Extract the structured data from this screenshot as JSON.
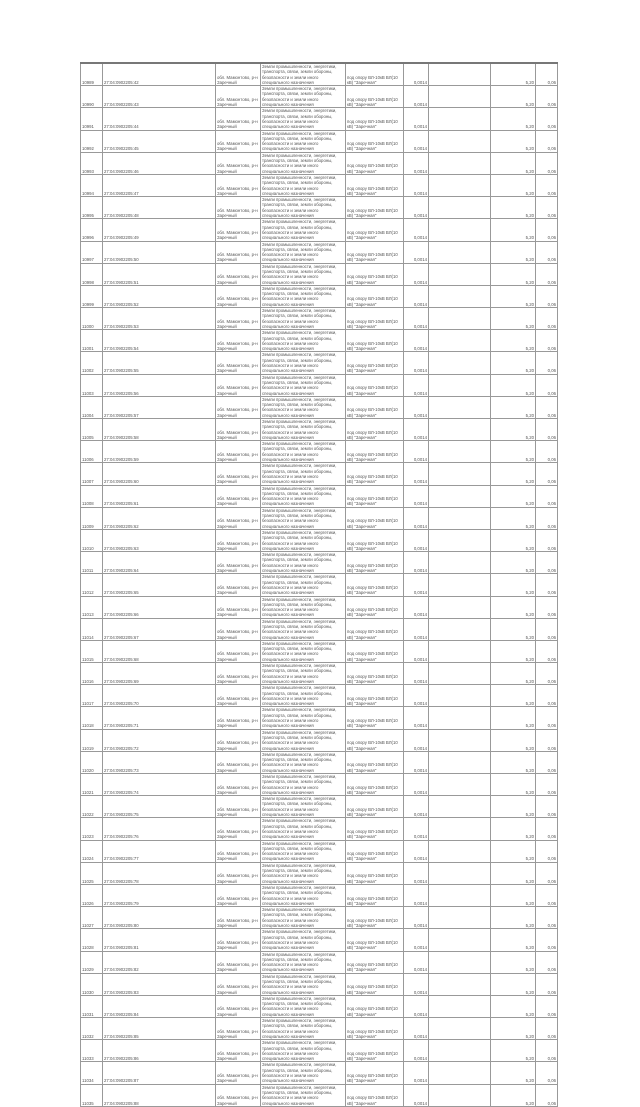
{
  "shared": {
    "address": "обл. Мамонтово, р-н Заречный",
    "category": "Земли промышленности, энергетики, транспорта, связи, земли обороны, безопасности и земли иного специального назначения",
    "purpose": "под опору ВЛ-10кВ ВЛ(10 кВ) \"Заречная\"",
    "area": "0,0014",
    "extra": ""
  },
  "rows": [
    {
      "id": "10989",
      "cad": "27:04:0902205:42",
      "price": "5,20",
      "total": "0,06"
    },
    {
      "id": "10990",
      "cad": "27:04:0902205:43",
      "price": "5,20",
      "total": "0,06"
    },
    {
      "id": "10991",
      "cad": "27:04:0902205:44",
      "price": "5,20",
      "total": "0,06"
    },
    {
      "id": "10992",
      "cad": "27:04:0902205:45",
      "price": "5,20",
      "total": "0,06"
    },
    {
      "id": "10993",
      "cad": "27:04:0902205:46",
      "price": "5,20",
      "total": "0,06"
    },
    {
      "id": "10994",
      "cad": "27:04:0902205:47",
      "price": "5,20",
      "total": "0,06"
    },
    {
      "id": "10995",
      "cad": "27:04:0902205:48",
      "price": "5,20",
      "total": "0,06"
    },
    {
      "id": "10996",
      "cad": "27:04:0902205:49",
      "price": "5,20",
      "total": "0,06"
    },
    {
      "id": "10997",
      "cad": "27:04:0902205:50",
      "price": "5,20",
      "total": "0,06"
    },
    {
      "id": "10998",
      "cad": "27:04:0902205:51",
      "price": "5,20",
      "total": "0,06"
    },
    {
      "id": "10999",
      "cad": "27:04:0902205:52",
      "price": "5,20",
      "total": "0,06"
    },
    {
      "id": "11000",
      "cad": "27:04:0902205:53",
      "price": "5,20",
      "total": "0,06"
    },
    {
      "id": "11001",
      "cad": "27:04:0902205:54",
      "price": "5,20",
      "total": "0,06"
    },
    {
      "id": "11002",
      "cad": "27:04:0902205:55",
      "price": "5,20",
      "total": "0,06"
    },
    {
      "id": "11003",
      "cad": "27:04:0902205:56",
      "price": "5,20",
      "total": "0,06"
    },
    {
      "id": "11004",
      "cad": "27:04:0902205:57",
      "price": "5,20",
      "total": "0,06"
    },
    {
      "id": "11005",
      "cad": "27:04:0902205:58",
      "price": "5,20",
      "total": "0,06"
    },
    {
      "id": "11006",
      "cad": "27:04:0902205:59",
      "price": "5,20",
      "total": "0,06"
    },
    {
      "id": "11007",
      "cad": "27:04:0902205:60",
      "price": "5,20",
      "total": "0,06"
    },
    {
      "id": "11008",
      "cad": "27:04:0902205:61",
      "price": "5,20",
      "total": "0,06"
    },
    {
      "id": "11009",
      "cad": "27:04:0902205:62",
      "price": "5,20",
      "total": "0,06"
    },
    {
      "id": "11010",
      "cad": "27:04:0902205:63",
      "price": "5,20",
      "total": "0,06"
    },
    {
      "id": "11011",
      "cad": "27:04:0902205:64",
      "price": "5,20",
      "total": "0,06"
    },
    {
      "id": "11012",
      "cad": "27:04:0902205:65",
      "price": "5,20",
      "total": "0,06"
    },
    {
      "id": "11013",
      "cad": "27:04:0902205:66",
      "price": "5,20",
      "total": "0,06"
    },
    {
      "id": "11014",
      "cad": "27:04:0902205:67",
      "price": "5,20",
      "total": "0,06"
    },
    {
      "id": "11015",
      "cad": "27:04:0902205:68",
      "price": "5,20",
      "total": "0,06"
    },
    {
      "id": "11016",
      "cad": "27:04:0902205:69",
      "price": "5,20",
      "total": "0,06"
    },
    {
      "id": "11017",
      "cad": "27:04:0902205:70",
      "price": "5,20",
      "total": "0,06"
    },
    {
      "id": "11018",
      "cad": "27:04:0902205:71",
      "price": "5,20",
      "total": "0,06"
    },
    {
      "id": "11019",
      "cad": "27:04:0902205:72",
      "price": "5,20",
      "total": "0,06"
    },
    {
      "id": "11020",
      "cad": "27:04:0902205:73",
      "price": "5,20",
      "total": "0,06"
    },
    {
      "id": "11021",
      "cad": "27:04:0902205:74",
      "price": "5,20",
      "total": "0,06"
    },
    {
      "id": "11022",
      "cad": "27:04:0902205:75",
      "price": "5,20",
      "total": "0,06"
    },
    {
      "id": "11023",
      "cad": "27:04:0902205:76",
      "price": "5,20",
      "total": "0,06"
    },
    {
      "id": "11024",
      "cad": "27:04:0902205:77",
      "price": "5,20",
      "total": "0,06"
    },
    {
      "id": "11025",
      "cad": "27:04:0902205:78",
      "price": "5,20",
      "total": "0,06"
    },
    {
      "id": "11026",
      "cad": "27:04:0902205:79",
      "price": "5,20",
      "total": "0,06"
    },
    {
      "id": "11027",
      "cad": "27:04:0902205:80",
      "price": "5,20",
      "total": "0,06"
    },
    {
      "id": "11028",
      "cad": "27:04:0902205:81",
      "price": "5,20",
      "total": "0,06"
    },
    {
      "id": "11029",
      "cad": "27:04:0902205:82",
      "price": "5,20",
      "total": "0,06"
    },
    {
      "id": "11030",
      "cad": "27:04:0902205:83",
      "price": "5,20",
      "total": "0,06"
    },
    {
      "id": "11031",
      "cad": "27:04:0902205:84",
      "price": "5,20",
      "total": "0,06"
    },
    {
      "id": "11032",
      "cad": "27:04:0902205:85",
      "price": "5,20",
      "total": "0,06"
    },
    {
      "id": "11033",
      "cad": "27:04:0902205:86",
      "price": "5,20",
      "total": "0,06"
    },
    {
      "id": "11034",
      "cad": "27:04:0902205:87",
      "price": "5,20",
      "total": "0,06"
    },
    {
      "id": "11035",
      "cad": "27:04:0902205:88",
      "price": "5,20",
      "total": "0,06"
    }
  ]
}
